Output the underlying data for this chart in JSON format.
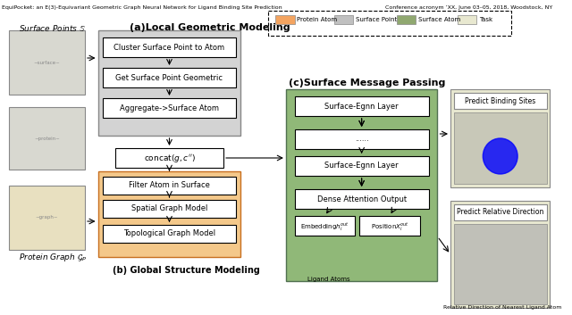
{
  "title_left": "EquiPocket: an E(3)-Equivariant Geometric Graph Neural Network for Ligand Binding Site Prediction",
  "title_right": "Conference acronym ’XX, June 03–05, 2018, Woodstock, NY",
  "fig_bg": "#ffffff",
  "legend_items": [
    {
      "label": "Protein Atom",
      "color": "#F4A460"
    },
    {
      "label": "Surface Point",
      "color": "#C0C0C0"
    },
    {
      "label": "Surface Atom",
      "color": "#90A870"
    },
    {
      "label": "Task",
      "color": "#E8E8D0"
    }
  ],
  "section_a_title": "(a)Local Geometric Modeling",
  "section_b_title": "(b) Global Structure Modeling",
  "section_c_title": "(c)Surface Message Passing",
  "surface_points_label": "Surface Points $\\mathbb{S}$",
  "protein_graph_label": "Protein Graph $\\mathcal{G}_P$",
  "box_a_color": "#D3D3D3",
  "box_b_color": "#F4C88A",
  "box_c_color": "#90B878",
  "box_task_color": "#E8E8D0",
  "box_a_items": [
    "Cluster Surface Point to Atom",
    "Get Surface Point Geometric",
    "Aggregate->Surface Atom"
  ],
  "box_b_items": [
    "Filter Atom in Surface",
    "Spatial Graph Model",
    "Topological Graph Model"
  ],
  "box_c_items": [
    "Surface-Egnn Layer",
    "......",
    "Surface-Egnn Layer",
    "Dense Attention Output"
  ],
  "concat_label": "concat$(g, c'')$",
  "embedding_label": "Embedding$h_i^{out}$",
  "position_label": "Position$X_i^{out}$",
  "predict_binding_label": "Predict Binding Sites",
  "predict_direction_label": "Predict Relative Direction",
  "ligand_atoms_label": "Ligand Atoms",
  "relative_dir_label": "Relative Direction of Nearest Ligand Atom"
}
